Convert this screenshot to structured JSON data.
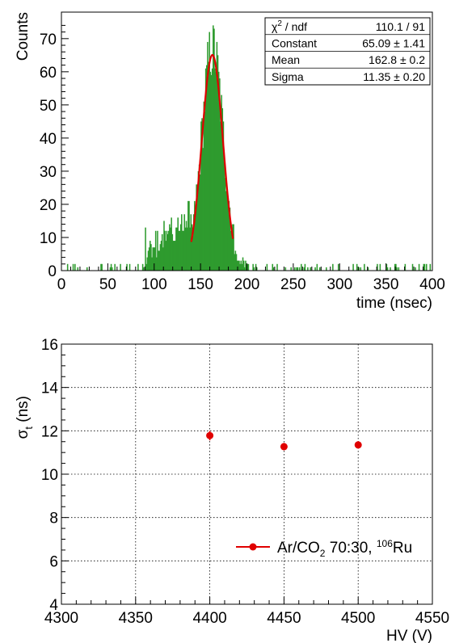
{
  "chart_data": [
    {
      "type": "histogram",
      "xlabel": "time (nsec)",
      "ylabel": "Counts",
      "xlim": [
        0,
        400
      ],
      "ylim": [
        0,
        78
      ],
      "x_ticks": [
        "0",
        "50",
        "100",
        "150",
        "200",
        "250",
        "300",
        "350",
        "400"
      ],
      "y_ticks": [
        "0",
        "10",
        "20",
        "30",
        "40",
        "50",
        "60",
        "70"
      ],
      "bar_color": "#2e9b2e",
      "fit_color": "#e00000",
      "fit": {
        "function": "gaus",
        "range": [
          140,
          185
        ],
        "constant": 65.09,
        "mean": 162.8,
        "sigma": 11.35
      },
      "stats_box": {
        "rows": [
          {
            "label_main": "χ",
            "label_sup": "2",
            "label_rest": " / ndf",
            "value": "110.1 / 91"
          },
          {
            "label_main": "Constant",
            "value": "65.09 ± 1.41"
          },
          {
            "label_main": "Mean",
            "value": "162.8 ± 0.2"
          },
          {
            "label_main": "Sigma",
            "value": "11.35 ± 0.20"
          }
        ]
      }
    },
    {
      "type": "scatter",
      "xlabel": "HV (V)",
      "ylabel_main": "σ",
      "ylabel_sub": "t",
      "ylabel_rest": " (ns)",
      "xlim": [
        4300,
        4550
      ],
      "ylim": [
        4,
        16
      ],
      "x_ticks": [
        "4300",
        "4350",
        "4400",
        "4450",
        "4500",
        "4550"
      ],
      "y_ticks": [
        "4",
        "6",
        "8",
        "10",
        "12",
        "14",
        "16"
      ],
      "grid": true,
      "marker_color": "#e00000",
      "series": [
        {
          "legend_parts": [
            "Ar/CO",
            "2",
            " 70:30, ",
            "106",
            "Ru"
          ],
          "x": [
            4400,
            4450,
            4500
          ],
          "y": [
            11.78,
            11.27,
            11.35
          ],
          "yerr": [
            0.22,
            0.17,
            0.17
          ]
        }
      ],
      "legend_position": "bottom-right"
    }
  ]
}
